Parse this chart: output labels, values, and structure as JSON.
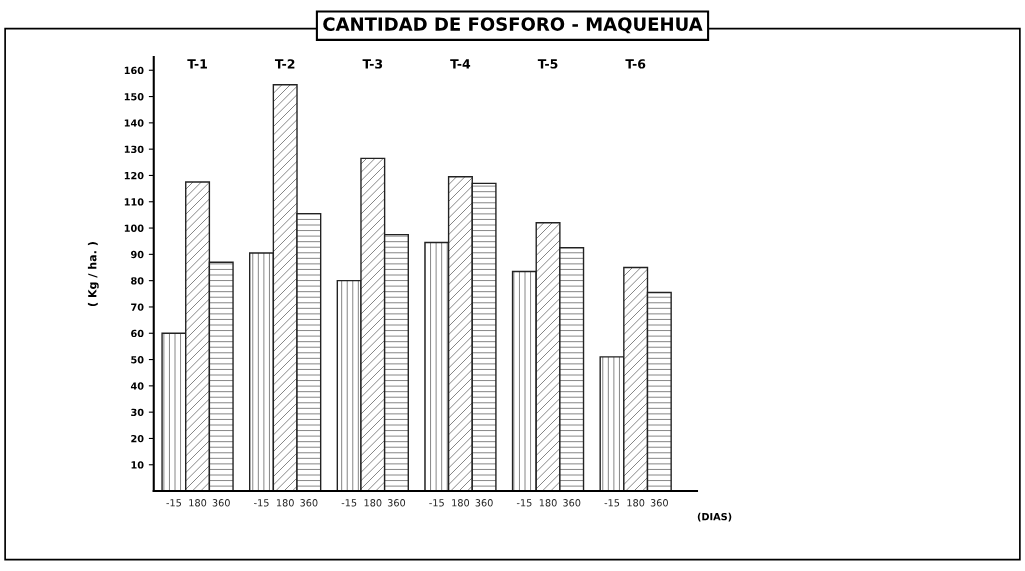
{
  "chart_data": {
    "type": "bar",
    "title": "CANTIDAD DE FOSFORO - MAQUEHUA",
    "ylabel": "( Kg / ha. )",
    "xlabel": "(DIAS)",
    "categories": [
      "T-1",
      "T-2",
      "T-3",
      "T-4",
      "T-5",
      "T-6"
    ],
    "series": [
      {
        "name": "-15",
        "color": "#222222",
        "values": [
          60,
          90.5,
          80,
          94.5,
          83.5,
          51
        ]
      },
      {
        "name": "180",
        "color": "#222222",
        "values": [
          117.5,
          154.5,
          126.5,
          119.5,
          102,
          85
        ]
      },
      {
        "name": "360",
        "color": "#222222",
        "values": [
          87,
          105.5,
          97.5,
          117,
          92.5,
          75.5
        ]
      }
    ],
    "ylim": [
      0,
      165
    ],
    "yticks": [
      10,
      20,
      30,
      40,
      50,
      60,
      70,
      80,
      90,
      100,
      110,
      120,
      130,
      140,
      150,
      160
    ],
    "grid": false,
    "legend": false
  }
}
